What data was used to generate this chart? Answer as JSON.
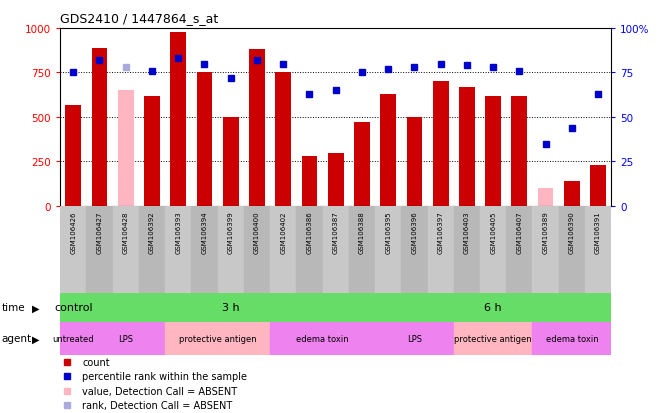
{
  "title": "GDS2410 / 1447864_s_at",
  "samples": [
    "GSM106426",
    "GSM106427",
    "GSM106428",
    "GSM106392",
    "GSM106393",
    "GSM106394",
    "GSM106399",
    "GSM106400",
    "GSM106402",
    "GSM106386",
    "GSM106387",
    "GSM106388",
    "GSM106395",
    "GSM106396",
    "GSM106397",
    "GSM106403",
    "GSM106405",
    "GSM106407",
    "GSM106389",
    "GSM106390",
    "GSM106391"
  ],
  "count_values": [
    570,
    890,
    650,
    620,
    980,
    750,
    500,
    880,
    750,
    280,
    300,
    470,
    630,
    500,
    700,
    670,
    620,
    620,
    100,
    140,
    230
  ],
  "count_absent": [
    false,
    false,
    true,
    false,
    false,
    false,
    false,
    false,
    false,
    false,
    false,
    false,
    false,
    false,
    false,
    false,
    false,
    false,
    true,
    false,
    false
  ],
  "rank_values": [
    75,
    82,
    78,
    76,
    83,
    80,
    72,
    82,
    80,
    63,
    65,
    75,
    77,
    78,
    80,
    79,
    78,
    76,
    35,
    44,
    63
  ],
  "rank_absent": [
    false,
    false,
    true,
    false,
    false,
    false,
    false,
    false,
    false,
    false,
    false,
    false,
    false,
    false,
    false,
    false,
    false,
    false,
    false,
    false,
    false
  ],
  "time_groups": [
    {
      "label": "control",
      "start": 0,
      "end": 0
    },
    {
      "label": "3 h",
      "start": 1,
      "end": 11
    },
    {
      "label": "6 h",
      "start": 12,
      "end": 20
    }
  ],
  "agent_groups": [
    {
      "label": "untreated",
      "start": 0,
      "end": 0,
      "color": "#EE82EE"
    },
    {
      "label": "LPS",
      "start": 1,
      "end": 3,
      "color": "#EE82EE"
    },
    {
      "label": "protective antigen",
      "start": 4,
      "end": 7,
      "color": "#FFB6C1"
    },
    {
      "label": "edema toxin",
      "start": 8,
      "end": 11,
      "color": "#EE82EE"
    },
    {
      "label": "LPS",
      "start": 12,
      "end": 14,
      "color": "#EE82EE"
    },
    {
      "label": "protective antigen",
      "start": 15,
      "end": 17,
      "color": "#FFB6C1"
    },
    {
      "label": "edema toxin",
      "start": 18,
      "end": 20,
      "color": "#EE82EE"
    }
  ],
  "bar_color": "#CC0000",
  "bar_absent_color": "#FFB6C1",
  "rank_color": "#0000CC",
  "rank_absent_color": "#AAAADD",
  "time_color": "#66DD66",
  "agent_violet_color": "#EE82EE",
  "agent_pink_color": "#FFB6C1",
  "ylim_left": [
    0,
    1000
  ],
  "ylim_right": [
    0,
    100
  ],
  "yticks_left": [
    0,
    250,
    500,
    750,
    1000
  ],
  "yticks_right": [
    0,
    25,
    50,
    75,
    100
  ],
  "bar_width": 0.6,
  "label_bg_even": "#C8C8C8",
  "label_bg_odd": "#B8B8B8"
}
